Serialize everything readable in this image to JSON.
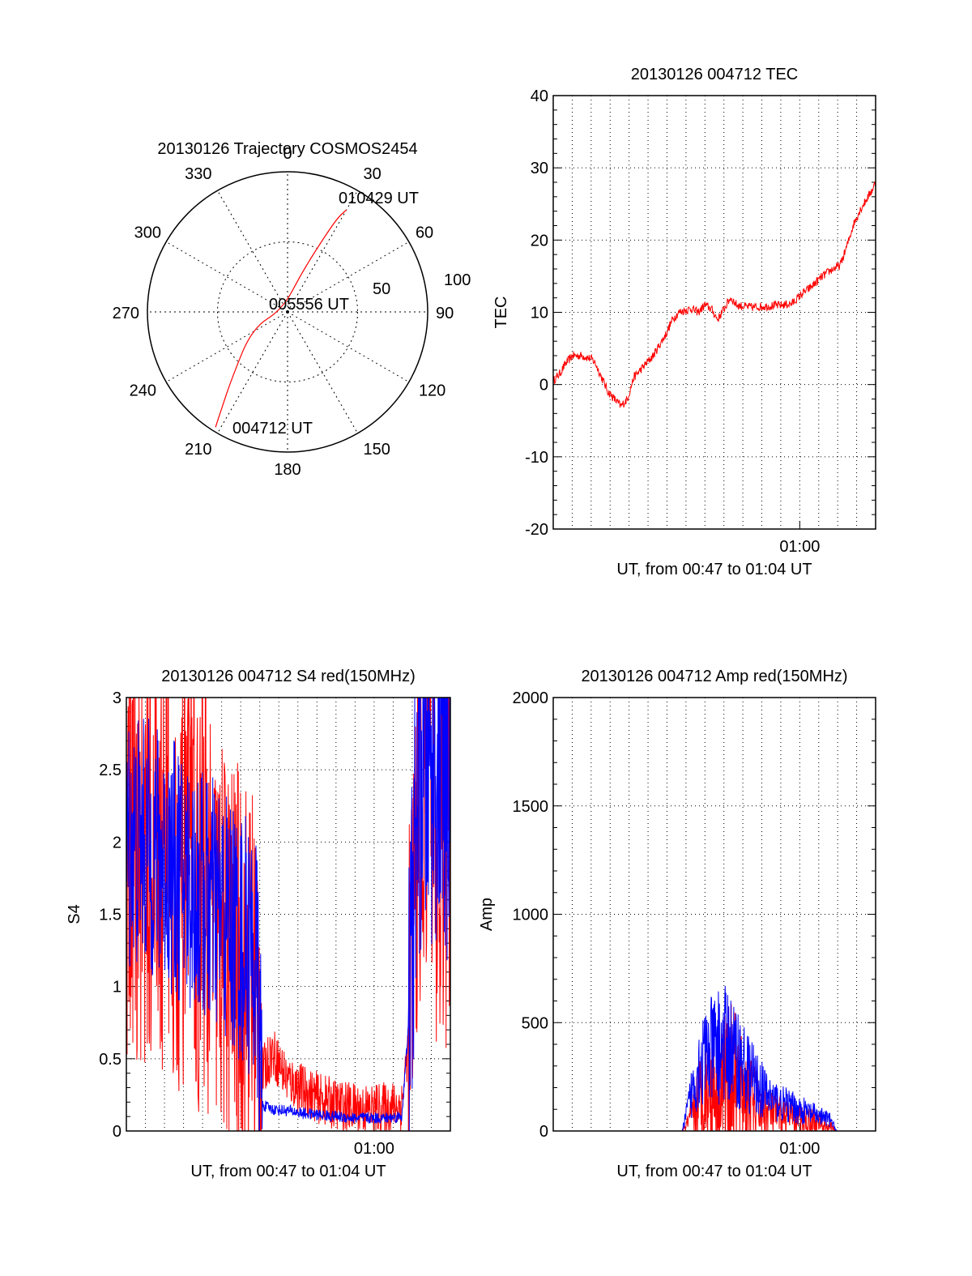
{
  "colors": {
    "red": "#ff0000",
    "blue": "#0000ff",
    "axis": "#000000",
    "grid": "#000000"
  },
  "chart_data": [
    {
      "type": "polar",
      "title": "20130126 Trajectory COSMOS2454",
      "angle_labels": [
        "0",
        "30",
        "60",
        "90",
        "120",
        "150",
        "180",
        "210",
        "240",
        "270",
        "300",
        "330"
      ],
      "radial_labels": [
        "50",
        "100"
      ],
      "rlim": [
        0,
        100
      ],
      "series": [
        {
          "color": "#ff0000",
          "points": [
            [
              212,
              97
            ],
            [
              214,
              85
            ],
            [
              220,
              62
            ],
            [
              245,
              28
            ],
            [
              300,
              4
            ],
            [
              20,
              30
            ],
            [
              26,
              58
            ],
            [
              28,
              76
            ],
            [
              30,
              84
            ]
          ]
        }
      ],
      "annotations": [
        "010429 UT",
        "005556 UT",
        "004712 UT"
      ],
      "grid": true
    },
    {
      "type": "line",
      "title": "20130126 004712 TEC",
      "ylabel": "TEC",
      "xlabel": "UT, from 00:47 to 01:04 UT",
      "xticklabels": [
        "01:00"
      ],
      "yticks": [
        "40",
        "30",
        "20",
        "10",
        "0",
        "-10",
        "-20"
      ],
      "ylim": [
        -20,
        40
      ],
      "xlim": [
        0,
        1
      ],
      "grid": true,
      "series": [
        {
          "color": "#ff0000",
          "x": [
            0,
            0.02,
            0.04,
            0.06,
            0.09,
            0.12,
            0.13,
            0.15,
            0.17,
            0.19,
            0.21,
            0.23,
            0.25,
            0.27,
            0.29,
            0.31,
            0.33,
            0.35,
            0.37,
            0.39,
            0.41,
            0.43,
            0.45,
            0.47,
            0.49,
            0.51,
            0.53,
            0.55,
            0.57,
            0.59,
            0.62,
            0.65,
            0.68,
            0.71,
            0.74,
            0.77,
            0.8,
            0.83,
            0.86,
            0.89,
            0.91,
            0.93,
            0.95,
            0.97,
            0.99,
            1
          ],
          "y": [
            0.5,
            1.5,
            3,
            4,
            4,
            3.5,
            3,
            1,
            -1,
            -2,
            -3,
            -2,
            1,
            2,
            3,
            4,
            5.5,
            7,
            9,
            10,
            10.3,
            10.5,
            10,
            11,
            10.5,
            9,
            10.5,
            12,
            11,
            10.8,
            10.7,
            10.8,
            10.9,
            11,
            11.2,
            12.5,
            13.5,
            14.8,
            15.8,
            16.5,
            19,
            22,
            24,
            25.5,
            27,
            28
          ]
        }
      ]
    },
    {
      "type": "line",
      "title": "20130126 004712 S4 red(150MHz)",
      "ylabel": "S4",
      "xlabel": "UT, from 00:47 to 01:04 UT",
      "xticklabels": [
        "01:00"
      ],
      "yticks": [
        "3",
        "2.5",
        "2",
        "1.5",
        "1",
        "0.5",
        "0"
      ],
      "ylim": [
        0,
        3
      ],
      "xlim": [
        0,
        1
      ],
      "grid": true,
      "series": [
        {
          "color": "#ff0000",
          "x": [
            0,
            0.05,
            0.1,
            0.15,
            0.2,
            0.25,
            0.3,
            0.35,
            0.4,
            0.42,
            0.45,
            0.5,
            0.55,
            0.6,
            0.65,
            0.7,
            0.75,
            0.8,
            0.85,
            0.87,
            0.9,
            0.95,
            1
          ],
          "y": [
            1.9,
            1.85,
            1.8,
            1.7,
            1.6,
            1.45,
            1.3,
            1.15,
            1.05,
            0.4,
            0.55,
            0.35,
            0.28,
            0.22,
            0.18,
            0.16,
            0.15,
            0.16,
            0.18,
            0.6,
            2.2,
            2.0,
            1.8
          ]
        },
        {
          "color": "#0000ff",
          "x": [
            0,
            0.05,
            0.1,
            0.15,
            0.2,
            0.25,
            0.3,
            0.35,
            0.4,
            0.42,
            0.45,
            0.5,
            0.55,
            0.6,
            0.65,
            0.7,
            0.75,
            0.8,
            0.85,
            0.87,
            0.9,
            0.95,
            1
          ],
          "y": [
            2.0,
            2.0,
            1.9,
            1.8,
            1.7,
            1.6,
            1.5,
            1.35,
            1.2,
            0.18,
            0.15,
            0.14,
            0.12,
            0.11,
            0.1,
            0.09,
            0.09,
            0.09,
            0.1,
            0.7,
            2.4,
            2.5,
            2.3
          ]
        }
      ]
    },
    {
      "type": "line",
      "title": "20130126 004712 Amp red(150MHz)",
      "ylabel": "Amp",
      "xlabel": "UT, from 00:47 to 01:04 UT",
      "xticklabels": [
        "01:00"
      ],
      "yticks": [
        "2000",
        "1500",
        "1000",
        "500",
        "0"
      ],
      "ylim": [
        0,
        2000
      ],
      "xlim": [
        0,
        1
      ],
      "grid": true,
      "series": [
        {
          "color": "#ff0000",
          "x": [
            0,
            0.4,
            0.43,
            0.45,
            0.48,
            0.5,
            0.53,
            0.55,
            0.58,
            0.6,
            0.63,
            0.66,
            0.7,
            0.74,
            0.78,
            0.82,
            0.86,
            0.88,
            1
          ],
          "y": [
            0,
            0,
            60,
            150,
            200,
            220,
            240,
            250,
            200,
            160,
            120,
            90,
            70,
            60,
            50,
            40,
            20,
            0,
            0
          ]
        },
        {
          "color": "#0000ff",
          "x": [
            0,
            0.4,
            0.43,
            0.45,
            0.48,
            0.5,
            0.53,
            0.55,
            0.58,
            0.6,
            0.63,
            0.66,
            0.7,
            0.74,
            0.78,
            0.82,
            0.86,
            0.88,
            1
          ],
          "y": [
            0,
            0,
            180,
            300,
            350,
            380,
            400,
            380,
            320,
            280,
            220,
            170,
            130,
            110,
            90,
            70,
            50,
            0,
            0
          ]
        }
      ]
    }
  ]
}
